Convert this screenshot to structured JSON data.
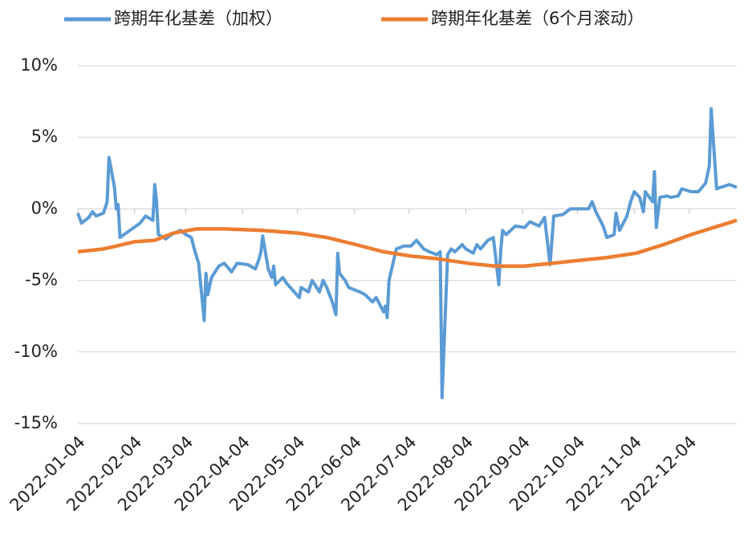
{
  "chart_data": {
    "type": "line",
    "ylim": [
      -15,
      10
    ],
    "yticks": [
      {
        "value": -15,
        "label": "-15%"
      },
      {
        "value": -10,
        "label": "-10%"
      },
      {
        "value": -5,
        "label": "-5%"
      },
      {
        "value": 0,
        "label": "0%"
      },
      {
        "value": 5,
        "label": "5%"
      },
      {
        "value": 10,
        "label": "10%"
      }
    ],
    "xlim": [
      "2022-01-04",
      "2022-12-30"
    ],
    "xticks": [
      "2022-01-04",
      "2022-02-04",
      "2022-03-04",
      "2022-04-04",
      "2022-05-04",
      "2022-06-04",
      "2022-07-04",
      "2022-08-04",
      "2022-09-04",
      "2022-10-04",
      "2022-11-04",
      "2022-12-04"
    ],
    "grid": true,
    "legend": "top",
    "series": [
      {
        "name": "跨期年化基差（加权）",
        "color": "#5b9bd5",
        "x": [
          "2022-01-04",
          "2022-01-06",
          "2022-01-10",
          "2022-01-12",
          "2022-01-14",
          "2022-01-18",
          "2022-01-20",
          "2022-01-21",
          "2022-01-24",
          "2022-01-25",
          "2022-01-26",
          "2022-01-27",
          "2022-02-07",
          "2022-02-10",
          "2022-02-14",
          "2022-02-15",
          "2022-02-16",
          "2022-02-17",
          "2022-02-21",
          "2022-02-24",
          "2022-03-01",
          "2022-03-04",
          "2022-03-07",
          "2022-03-09",
          "2022-03-11",
          "2022-03-14",
          "2022-03-15",
          "2022-03-16",
          "2022-03-18",
          "2022-03-22",
          "2022-03-25",
          "2022-03-29",
          "2022-04-01",
          "2022-04-07",
          "2022-04-11",
          "2022-04-13",
          "2022-04-14",
          "2022-04-15",
          "2022-04-18",
          "2022-04-20",
          "2022-04-21",
          "2022-04-22",
          "2022-04-26",
          "2022-04-28",
          "2022-05-05",
          "2022-05-06",
          "2022-05-10",
          "2022-05-12",
          "2022-05-16",
          "2022-05-18",
          "2022-05-20",
          "2022-05-23",
          "2022-05-25",
          "2022-05-26",
          "2022-05-27",
          "2022-05-30",
          "2022-06-01",
          "2022-06-07",
          "2022-06-10",
          "2022-06-14",
          "2022-06-16",
          "2022-06-20",
          "2022-06-21",
          "2022-06-22",
          "2022-06-23",
          "2022-06-27",
          "2022-06-29",
          "2022-07-01",
          "2022-07-05",
          "2022-07-08",
          "2022-07-12",
          "2022-07-15",
          "2022-07-19",
          "2022-07-21",
          "2022-07-22",
          "2022-07-25",
          "2022-07-27",
          "2022-07-29",
          "2022-08-02",
          "2022-08-04",
          "2022-08-08",
          "2022-08-10",
          "2022-08-12",
          "2022-08-16",
          "2022-08-19",
          "2022-08-22",
          "2022-08-23",
          "2022-08-24",
          "2022-08-26",
          "2022-08-31",
          "2022-09-05",
          "2022-09-08",
          "2022-09-13",
          "2022-09-16",
          "2022-09-19",
          "2022-09-21",
          "2022-09-26",
          "2022-09-30",
          "2022-10-10",
          "2022-10-12",
          "2022-10-14",
          "2022-10-18",
          "2022-10-20",
          "2022-10-24",
          "2022-10-25",
          "2022-10-27",
          "2022-10-31",
          "2022-11-02",
          "2022-11-04",
          "2022-11-07",
          "2022-11-09",
          "2022-11-10",
          "2022-11-14",
          "2022-11-15",
          "2022-11-16",
          "2022-11-18",
          "2022-11-22",
          "2022-11-24",
          "2022-11-28",
          "2022-11-30",
          "2022-12-05",
          "2022-12-09",
          "2022-12-13",
          "2022-12-15",
          "2022-12-16",
          "2022-12-19",
          "2022-12-21",
          "2022-12-26",
          "2022-12-30"
        ],
        "values": [
          -0.3,
          -1.0,
          -0.6,
          -0.2,
          -0.5,
          -0.3,
          0.5,
          3.6,
          1.5,
          0,
          0.3,
          -2.0,
          -1.0,
          -0.5,
          -0.8,
          1.7,
          0.5,
          -1.8,
          -2.1,
          -1.8,
          -1.5,
          -1.8,
          -2.0,
          -3.0,
          -3.8,
          -7.8,
          -4.5,
          -6.0,
          -4.8,
          -4.0,
          -3.8,
          -4.4,
          -3.8,
          -3.9,
          -4.2,
          -3.5,
          -3.0,
          -1.9,
          -4.2,
          -4.8,
          -4.0,
          -5.3,
          -4.8,
          -5.2,
          -6.2,
          -5.5,
          -5.8,
          -5.0,
          -5.8,
          -5.0,
          -5.5,
          -6.5,
          -7.4,
          -3.1,
          -4.5,
          -5.0,
          -5.5,
          -5.8,
          -6.0,
          -6.5,
          -6.2,
          -7.2,
          -6.8,
          -7.6,
          -5.0,
          -2.8,
          -2.7,
          -2.6,
          -2.6,
          -2.2,
          -2.8,
          -3.0,
          -3.2,
          -3.0,
          -13.2,
          -3.2,
          -2.8,
          -3.0,
          -2.5,
          -2.8,
          -3.1,
          -2.5,
          -2.8,
          -2.2,
          -2.0,
          -5.3,
          -3.0,
          -1.5,
          -1.8,
          -1.2,
          -1.3,
          -0.9,
          -1.2,
          -0.6,
          -3.9,
          -0.5,
          -0.4,
          0.0,
          0.0,
          0.5,
          -0.2,
          -1.2,
          -2.0,
          -1.8,
          -0.3,
          -1.5,
          -0.5,
          0.5,
          1.2,
          0.8,
          -0.2,
          1.2,
          0.5,
          2.6,
          -1.3,
          0.8,
          0.9,
          0.8,
          0.9,
          1.4,
          1.2,
          1.2,
          1.8,
          3.0,
          7.0,
          1.4,
          1.5,
          1.7,
          1.5
        ]
      },
      {
        "name": "跨期年化基差（6个月滚动）",
        "color": "#ed7d31",
        "x": [
          "2022-01-04",
          "2022-01-18",
          "2022-02-04",
          "2022-02-15",
          "2022-02-25",
          "2022-03-10",
          "2022-03-25",
          "2022-04-15",
          "2022-05-05",
          "2022-05-20",
          "2022-06-05",
          "2022-06-20",
          "2022-07-05",
          "2022-07-20",
          "2022-08-05",
          "2022-08-20",
          "2022-09-05",
          "2022-09-20",
          "2022-10-05",
          "2022-10-20",
          "2022-11-05",
          "2022-11-20",
          "2022-12-05",
          "2022-12-20",
          "2022-12-30"
        ],
        "values": [
          -3.0,
          -2.8,
          -2.3,
          -2.2,
          -1.7,
          -1.4,
          -1.4,
          -1.5,
          -1.7,
          -2.0,
          -2.5,
          -3.0,
          -3.3,
          -3.5,
          -3.8,
          -4.0,
          -4.0,
          -3.8,
          -3.6,
          -3.4,
          -3.1,
          -2.5,
          -1.8,
          -1.2,
          -0.8
        ]
      }
    ]
  }
}
